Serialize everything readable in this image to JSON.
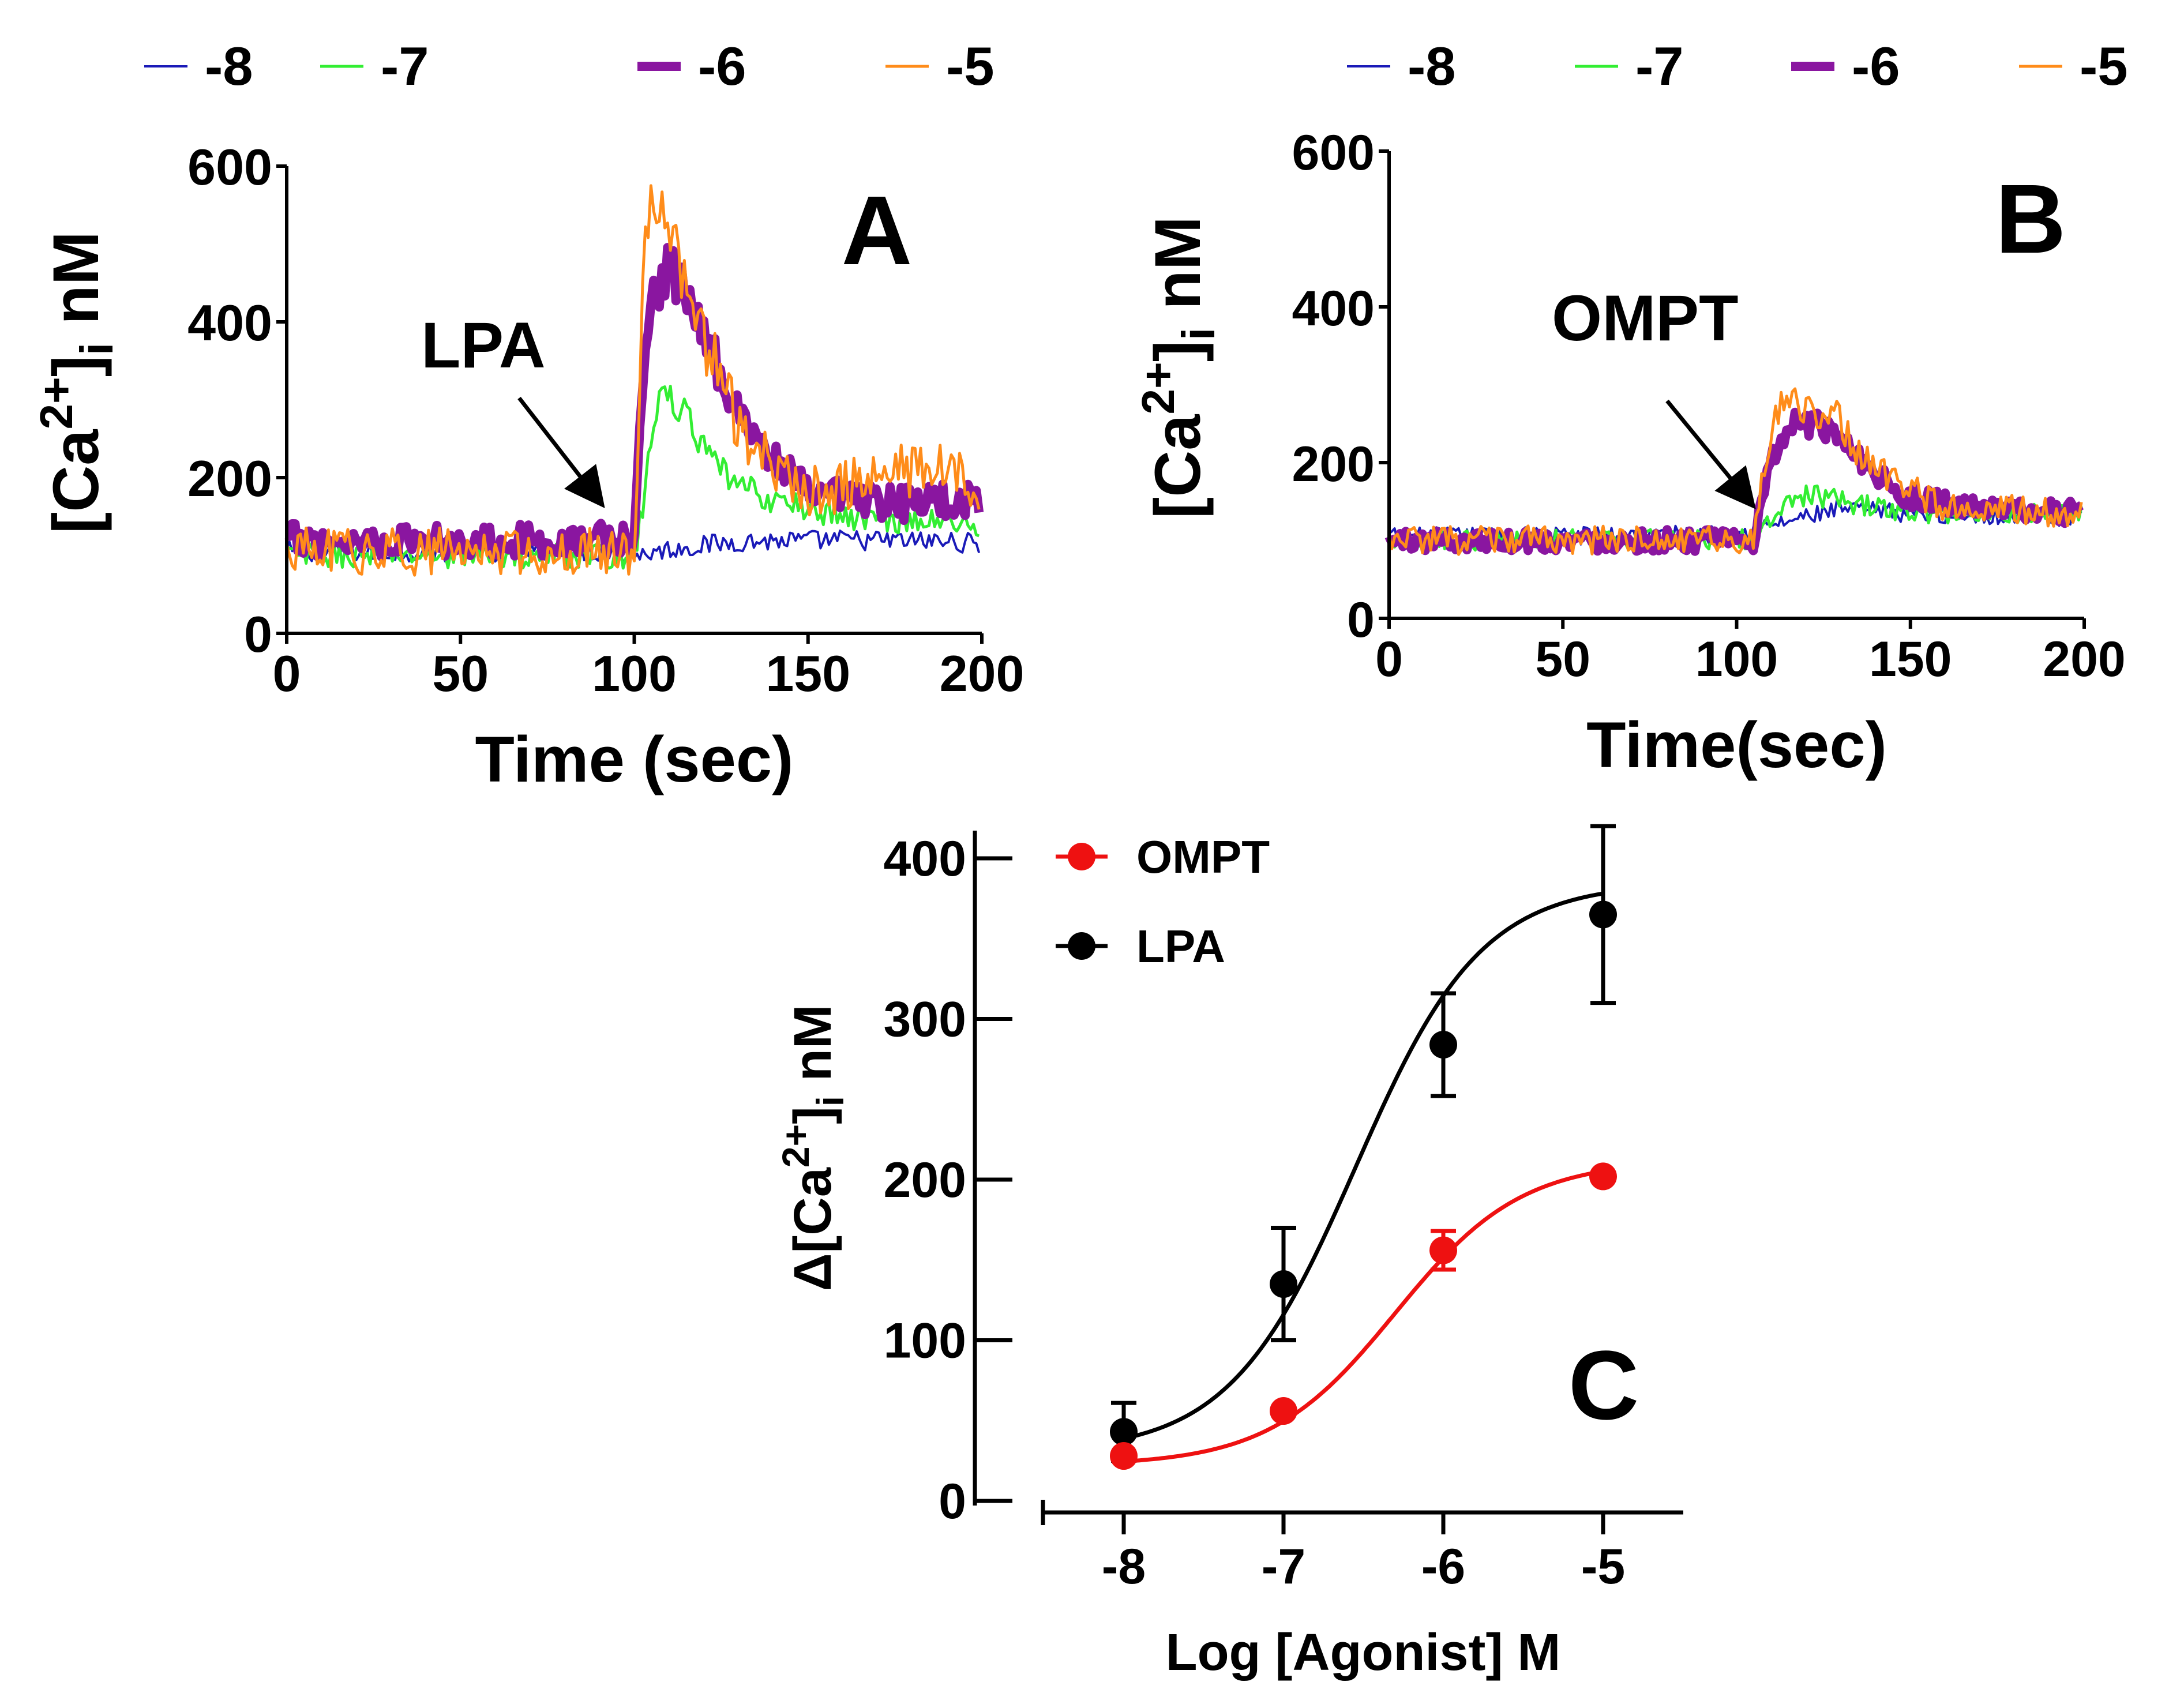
{
  "chart_data": [
    {
      "id": "A",
      "type": "line",
      "panel_label": "A",
      "stimulus_label": "LPA",
      "xlabel": "Time (sec)",
      "ylabel_parts": {
        "prefix": "[Ca",
        "sup": "2+",
        "mid": "]",
        "sub": "i",
        "suffix": " nM"
      },
      "xlim": [
        0,
        200
      ],
      "ylim": [
        0,
        600
      ],
      "xticks": [
        "0",
        "50",
        "100",
        "150",
        "200"
      ],
      "yticks": [
        "0",
        "200",
        "400",
        "600"
      ],
      "legend": [
        {
          "label": "-8",
          "color": "#1a1ab8"
        },
        {
          "label": "-7",
          "color": "#33ee33"
        },
        {
          "label": "-6",
          "color": "#8a16a0"
        },
        {
          "label": "-5",
          "color": "#ff8c1a"
        }
      ],
      "series": [
        {
          "name": "-8",
          "color": "#1a1ab8",
          "baseline": 105,
          "noise": 11,
          "envelope": [
            [
              0,
              105
            ],
            [
              95,
              105
            ],
            [
              100,
              100
            ],
            [
              110,
              108
            ],
            [
              130,
              118
            ],
            [
              160,
              120
            ],
            [
              190,
              118
            ],
            [
              200,
              115
            ]
          ]
        },
        {
          "name": "-7",
          "color": "#33ee33",
          "baseline": 100,
          "noise": 14,
          "envelope": [
            [
              0,
              100
            ],
            [
              100,
              100
            ],
            [
              103,
              180
            ],
            [
              106,
              290
            ],
            [
              110,
              305
            ],
            [
              115,
              280
            ],
            [
              122,
              220
            ],
            [
              130,
              190
            ],
            [
              140,
              170
            ],
            [
              160,
              150
            ],
            [
              200,
              140
            ]
          ]
        },
        {
          "name": "-6",
          "color": "#8a16a0",
          "baseline": 120,
          "noise": 18,
          "envelope": [
            [
              0,
              120
            ],
            [
              100,
              120
            ],
            [
              102,
              300
            ],
            [
              105,
              430
            ],
            [
              110,
              470
            ],
            [
              115,
              440
            ],
            [
              120,
              380
            ],
            [
              130,
              290
            ],
            [
              140,
              220
            ],
            [
              150,
              180
            ],
            [
              170,
              165
            ],
            [
              200,
              175
            ]
          ]
        },
        {
          "name": "-5",
          "color": "#ff8c1a",
          "baseline": 105,
          "noise": 26,
          "envelope": [
            [
              0,
              105
            ],
            [
              100,
              105
            ],
            [
              102,
              400
            ],
            [
              104,
              550
            ],
            [
              108,
              560
            ],
            [
              112,
              480
            ],
            [
              120,
              380
            ],
            [
              130,
              270
            ],
            [
              140,
              210
            ],
            [
              150,
              180
            ],
            [
              170,
              200
            ],
            [
              185,
              215
            ],
            [
              200,
              185
            ]
          ]
        }
      ]
    },
    {
      "id": "B",
      "type": "line",
      "panel_label": "B",
      "stimulus_label": "OMPT",
      "xlabel": "Time(sec)",
      "ylabel_parts": {
        "prefix": "[Ca",
        "sup": "2+",
        "mid": "]",
        "sub": "i",
        "suffix": " nM"
      },
      "xlim": [
        0,
        200
      ],
      "ylim": [
        0,
        600
      ],
      "xticks": [
        "0",
        "50",
        "100",
        "150",
        "200"
      ],
      "yticks": [
        "0",
        "200",
        "400",
        "600"
      ],
      "legend": [
        {
          "label": "-8",
          "color": "#1a1ab8"
        },
        {
          "label": "-7",
          "color": "#33ee33"
        },
        {
          "label": "-6",
          "color": "#8a16a0"
        },
        {
          "label": "-5",
          "color": "#ff8c1a"
        }
      ],
      "series": [
        {
          "name": "-8",
          "color": "#1a1ab8",
          "baseline": 105,
          "noise": 10,
          "envelope": [
            [
              0,
              105
            ],
            [
              100,
              108
            ],
            [
              115,
              125
            ],
            [
              130,
              140
            ],
            [
              150,
              135
            ],
            [
              200,
              130
            ]
          ]
        },
        {
          "name": "-7",
          "color": "#33ee33",
          "baseline": 100,
          "noise": 11,
          "envelope": [
            [
              0,
              100
            ],
            [
              105,
              102
            ],
            [
              112,
              140
            ],
            [
              120,
              160
            ],
            [
              130,
              150
            ],
            [
              150,
              135
            ],
            [
              200,
              135
            ]
          ]
        },
        {
          "name": "-6",
          "color": "#8a16a0",
          "baseline": 100,
          "noise": 12,
          "envelope": [
            [
              0,
              100
            ],
            [
              105,
              100
            ],
            [
              110,
              200
            ],
            [
              115,
              255
            ],
            [
              125,
              245
            ],
            [
              132,
              225
            ],
            [
              140,
              185
            ],
            [
              150,
              155
            ],
            [
              170,
              140
            ],
            [
              200,
              135
            ]
          ]
        },
        {
          "name": "-5",
          "color": "#ff8c1a",
          "baseline": 100,
          "noise": 16,
          "envelope": [
            [
              0,
              100
            ],
            [
              105,
              100
            ],
            [
              109,
              220
            ],
            [
              113,
              275
            ],
            [
              120,
              270
            ],
            [
              128,
              265
            ],
            [
              135,
              215
            ],
            [
              145,
              175
            ],
            [
              160,
              145
            ],
            [
              200,
              135
            ]
          ]
        }
      ]
    },
    {
      "id": "C",
      "type": "scatter",
      "panel_label": "C",
      "xlabel": "Log [Agonist] M",
      "ylabel_parts": {
        "prefix": "Δ[Ca",
        "sup": "2+",
        "mid": "]",
        "sub": "i",
        "suffix": " nM"
      },
      "xlim": [
        -8.5,
        -4.5
      ],
      "ylim": [
        0,
        400
      ],
      "xticks": [
        "-8",
        "-7",
        "-6",
        "-5"
      ],
      "yticks": [
        "0",
        "100",
        "200",
        "300",
        "400"
      ],
      "legend": [
        {
          "label": "OMPT",
          "color": "#ee1111"
        },
        {
          "label": "LPA",
          "color": "#000000"
        }
      ],
      "series": [
        {
          "name": "LPA",
          "color": "#000000",
          "x": [
            -8,
            -7,
            -6,
            -5
          ],
          "y": [
            43,
            135,
            284,
            365
          ],
          "err": [
            18,
            35,
            32,
            55
          ],
          "fit": {
            "bottom": 30,
            "top": 385,
            "logec50": -6.55,
            "hill": 1.1
          }
        },
        {
          "name": "OMPT",
          "color": "#ee1111",
          "x": [
            -8,
            -7,
            -6,
            -5
          ],
          "y": [
            28,
            56,
            156,
            202
          ],
          "err": [
            0,
            0,
            12,
            0
          ],
          "fit": {
            "bottom": 22,
            "top": 212,
            "logec50": -6.3,
            "hill": 1.1
          }
        }
      ]
    }
  ]
}
